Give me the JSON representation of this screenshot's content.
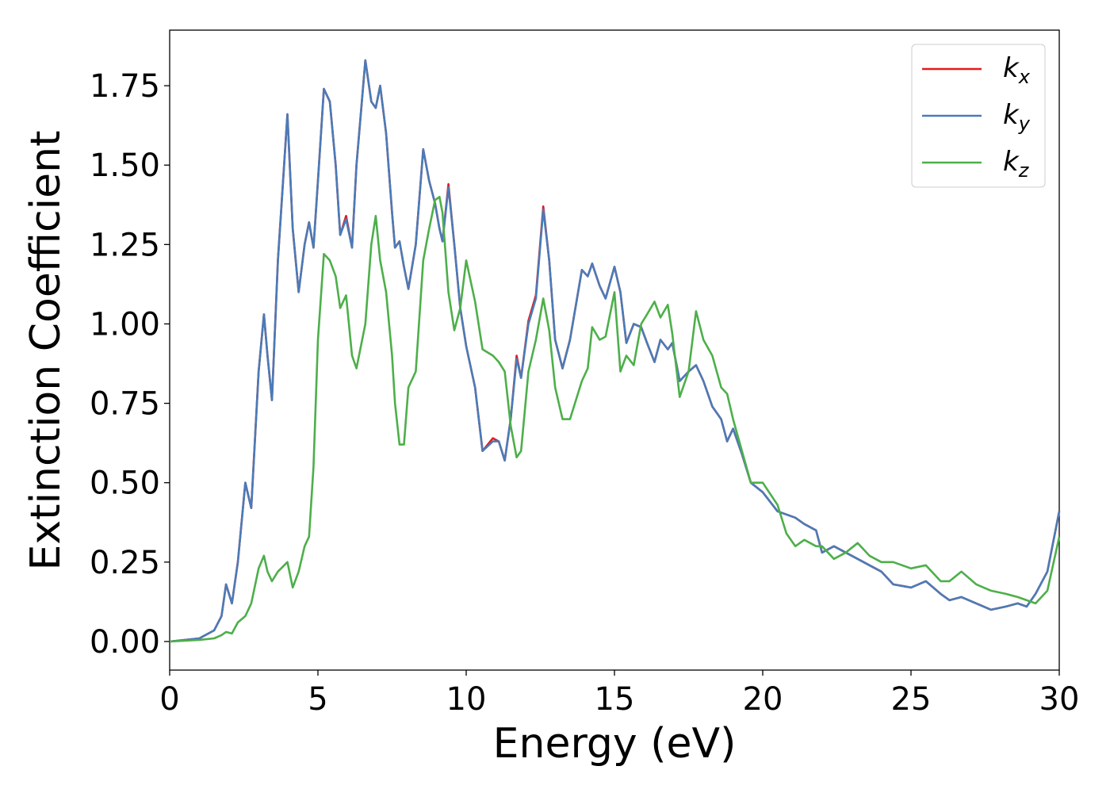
{
  "chart_data": {
    "type": "line",
    "x_label": "Energy (eV)",
    "y_label": "Extinction Coefficient",
    "xlim": [
      0,
      30
    ],
    "ylim": [
      -0.09,
      1.925
    ],
    "xticks": [
      0,
      5,
      10,
      15,
      20,
      25,
      30
    ],
    "yticks": [
      {
        "value": 0,
        "label": "0.00"
      },
      {
        "value": 0.25,
        "label": "0.25"
      },
      {
        "value": 0.5,
        "label": "0.50"
      },
      {
        "value": 0.75,
        "label": "0.75"
      },
      {
        "value": 1,
        "label": "1.00"
      },
      {
        "value": 1.25,
        "label": "1.25"
      },
      {
        "value": 1.5,
        "label": "1.50"
      },
      {
        "value": 1.75,
        "label": "1.75"
      }
    ],
    "legend": "upper right",
    "grid": false,
    "x": [
      0,
      1.0,
      1.5,
      1.75,
      1.9,
      2.1,
      2.3,
      2.55,
      2.75,
      3.0,
      3.18,
      3.3,
      3.45,
      3.65,
      3.97,
      4.15,
      4.35,
      4.55,
      4.7,
      4.85,
      5.0,
      5.2,
      5.4,
      5.6,
      5.75,
      5.95,
      6.15,
      6.3,
      6.6,
      6.8,
      6.95,
      7.1,
      7.3,
      7.5,
      7.6,
      7.75,
      7.9,
      8.05,
      8.3,
      8.55,
      8.75,
      8.95,
      9.1,
      9.2,
      9.4,
      9.6,
      9.8,
      10.0,
      10.3,
      10.55,
      10.9,
      11.1,
      11.3,
      11.5,
      11.7,
      11.85,
      12.1,
      12.35,
      12.6,
      12.8,
      13.0,
      13.25,
      13.5,
      13.9,
      14.1,
      14.25,
      14.5,
      14.7,
      15.0,
      15.2,
      15.4,
      15.65,
      15.9,
      16.1,
      16.35,
      16.55,
      16.8,
      16.95,
      17.2,
      17.5,
      17.75,
      18.0,
      18.3,
      18.6,
      18.8,
      19.0,
      19.3,
      19.6,
      20.0,
      20.5,
      20.8,
      21.1,
      21.4,
      21.8,
      22.0,
      22.4,
      22.8,
      23.2,
      23.6,
      24.0,
      24.4,
      25.0,
      25.5,
      26.0,
      26.3,
      26.7,
      27.2,
      27.7,
      28.2,
      28.6,
      28.9,
      29.2,
      29.6,
      30.0
    ],
    "series": [
      {
        "name": "k_x",
        "color": "#e41a1c",
        "values": [
          0,
          0.01,
          0.035,
          0.08,
          0.18,
          0.12,
          0.25,
          0.5,
          0.42,
          0.85,
          1.03,
          0.9,
          0.76,
          1.2,
          1.66,
          1.3,
          1.1,
          1.25,
          1.32,
          1.24,
          1.45,
          1.74,
          1.7,
          1.5,
          1.28,
          1.34,
          1.24,
          1.5,
          1.83,
          1.7,
          1.68,
          1.75,
          1.6,
          1.35,
          1.24,
          1.26,
          1.18,
          1.11,
          1.25,
          1.55,
          1.45,
          1.38,
          1.3,
          1.26,
          1.44,
          1.25,
          1.05,
          0.93,
          0.8,
          0.6,
          0.64,
          0.63,
          0.57,
          0.7,
          0.9,
          0.83,
          1.01,
          1.09,
          1.37,
          1.2,
          0.95,
          0.86,
          0.95,
          1.17,
          1.15,
          1.19,
          1.12,
          1.08,
          1.18,
          1.1,
          0.94,
          1.0,
          0.99,
          0.94,
          0.88,
          0.95,
          0.92,
          0.94,
          0.82,
          0.85,
          0.87,
          0.82,
          0.74,
          0.7,
          0.63,
          0.67,
          0.59,
          0.5,
          0.47,
          0.41,
          0.4,
          0.39,
          0.37,
          0.35,
          0.28,
          0.3,
          0.28,
          0.26,
          0.24,
          0.22,
          0.18,
          0.17,
          0.19,
          0.15,
          0.13,
          0.14,
          0.12,
          0.1,
          0.11,
          0.12,
          0.11,
          0.15,
          0.22,
          0.41
        ]
      },
      {
        "name": "k_y",
        "color": "#4a7bb7",
        "values": [
          0,
          0.01,
          0.035,
          0.08,
          0.18,
          0.12,
          0.25,
          0.5,
          0.42,
          0.85,
          1.03,
          0.9,
          0.76,
          1.2,
          1.66,
          1.3,
          1.1,
          1.25,
          1.32,
          1.24,
          1.45,
          1.74,
          1.7,
          1.5,
          1.28,
          1.33,
          1.24,
          1.5,
          1.83,
          1.7,
          1.68,
          1.75,
          1.6,
          1.35,
          1.24,
          1.26,
          1.18,
          1.11,
          1.25,
          1.55,
          1.45,
          1.38,
          1.3,
          1.26,
          1.43,
          1.25,
          1.05,
          0.93,
          0.8,
          0.6,
          0.63,
          0.63,
          0.57,
          0.7,
          0.89,
          0.83,
          1.0,
          1.08,
          1.36,
          1.2,
          0.95,
          0.86,
          0.95,
          1.17,
          1.15,
          1.19,
          1.12,
          1.08,
          1.18,
          1.1,
          0.94,
          1.0,
          0.99,
          0.94,
          0.88,
          0.95,
          0.92,
          0.94,
          0.82,
          0.85,
          0.87,
          0.82,
          0.74,
          0.7,
          0.63,
          0.67,
          0.59,
          0.5,
          0.47,
          0.41,
          0.4,
          0.39,
          0.37,
          0.35,
          0.28,
          0.3,
          0.28,
          0.26,
          0.24,
          0.22,
          0.18,
          0.17,
          0.19,
          0.15,
          0.13,
          0.14,
          0.12,
          0.1,
          0.11,
          0.12,
          0.11,
          0.15,
          0.22,
          0.41
        ]
      },
      {
        "name": "k_z",
        "color": "#4daf4a",
        "values": [
          0,
          0.005,
          0.01,
          0.02,
          0.03,
          0.025,
          0.06,
          0.08,
          0.12,
          0.23,
          0.27,
          0.22,
          0.19,
          0.22,
          0.25,
          0.17,
          0.22,
          0.3,
          0.33,
          0.55,
          0.95,
          1.22,
          1.2,
          1.15,
          1.05,
          1.09,
          0.9,
          0.86,
          1.0,
          1.25,
          1.34,
          1.2,
          1.1,
          0.9,
          0.75,
          0.62,
          0.62,
          0.8,
          0.85,
          1.2,
          1.3,
          1.39,
          1.4,
          1.35,
          1.1,
          0.98,
          1.05,
          1.2,
          1.07,
          0.92,
          0.9,
          0.88,
          0.85,
          0.68,
          0.58,
          0.6,
          0.85,
          0.95,
          1.08,
          0.98,
          0.8,
          0.7,
          0.7,
          0.82,
          0.86,
          0.99,
          0.95,
          0.96,
          1.1,
          0.85,
          0.9,
          0.87,
          1.0,
          1.03,
          1.07,
          1.02,
          1.06,
          0.97,
          0.77,
          0.85,
          1.04,
          0.95,
          0.9,
          0.8,
          0.78,
          0.7,
          0.6,
          0.5,
          0.5,
          0.43,
          0.34,
          0.3,
          0.32,
          0.3,
          0.3,
          0.26,
          0.28,
          0.31,
          0.27,
          0.25,
          0.25,
          0.23,
          0.24,
          0.19,
          0.19,
          0.22,
          0.18,
          0.16,
          0.15,
          0.14,
          0.13,
          0.12,
          0.16,
          0.33
        ]
      }
    ]
  }
}
